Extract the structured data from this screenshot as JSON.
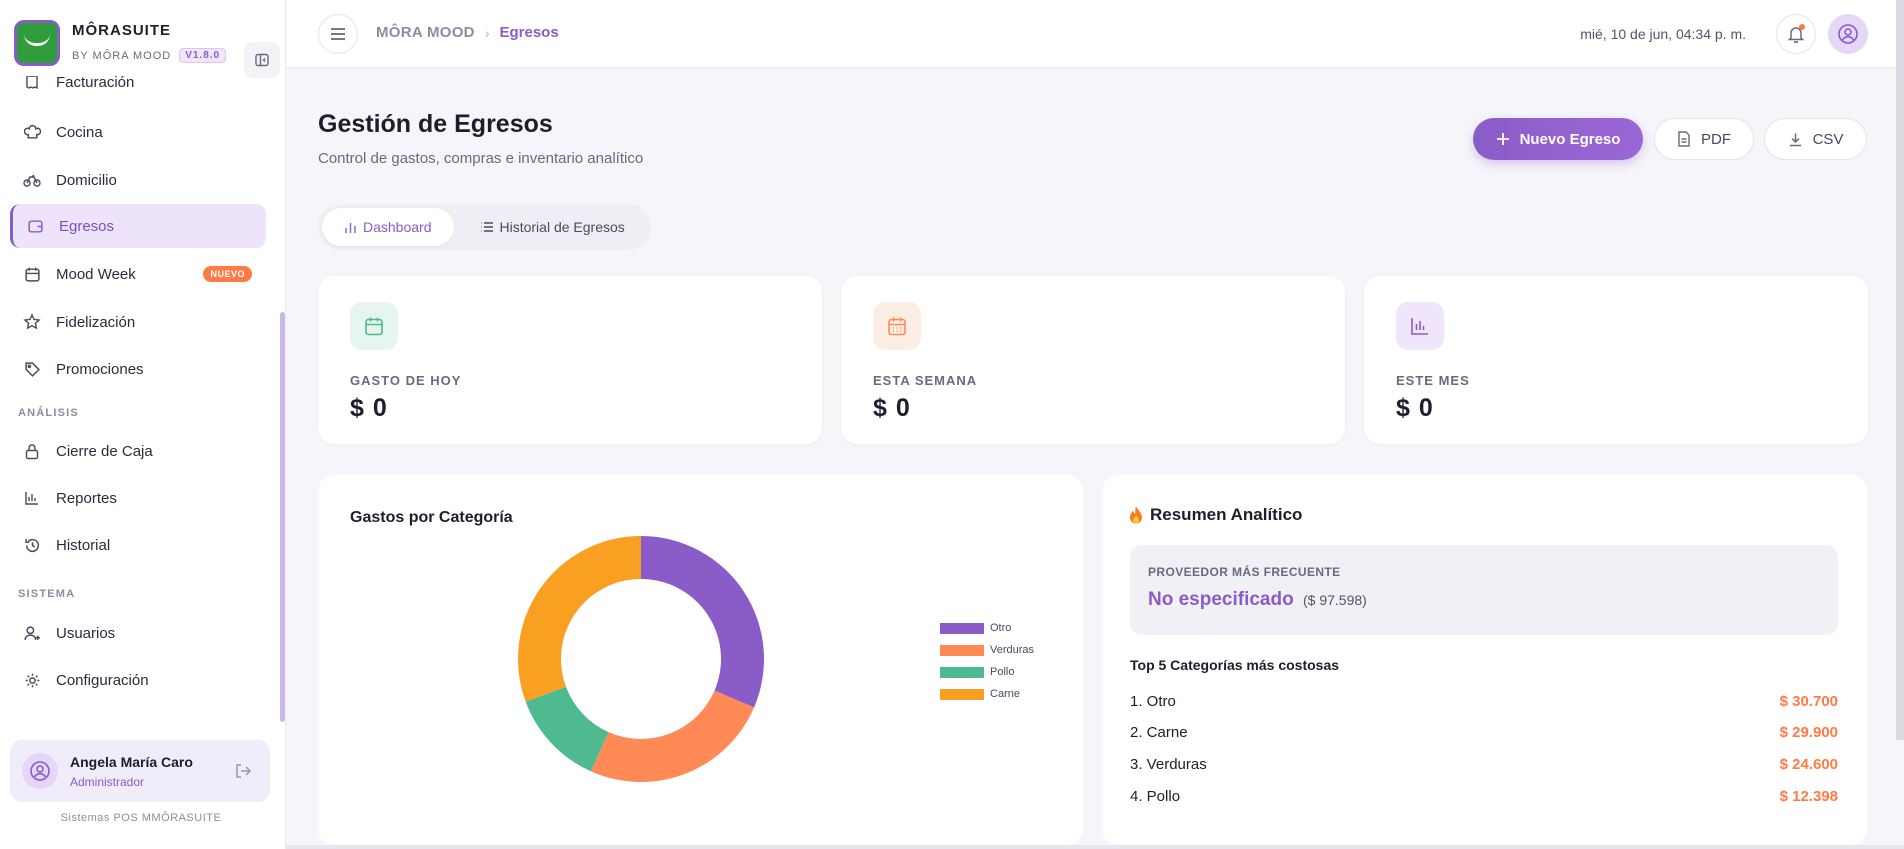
{
  "brand": {
    "name": "MÔRASUITE",
    "sub": "BY MÔRA MOOD",
    "version": "V1.8.0"
  },
  "sidebar": {
    "items": [
      {
        "label": "Facturación",
        "icon": "receipt-icon"
      },
      {
        "label": "Cocina",
        "icon": "chef-hat-icon"
      },
      {
        "label": "Domicilio",
        "icon": "bike-icon"
      },
      {
        "label": "Egresos",
        "icon": "wallet-icon",
        "active": true
      },
      {
        "label": "Mood Week",
        "icon": "calendar-icon",
        "badge": "NUEVO"
      },
      {
        "label": "Fidelización",
        "icon": "star-icon"
      },
      {
        "label": "Promociones",
        "icon": "tag-icon"
      },
      {
        "label": "Cierre de Caja",
        "icon": "lock-icon"
      },
      {
        "label": "Reportes",
        "icon": "bar-chart-icon"
      },
      {
        "label": "Historial",
        "icon": "history-icon"
      },
      {
        "label": "Usuarios",
        "icon": "users-icon"
      },
      {
        "label": "Configuración",
        "icon": "gear-icon"
      }
    ],
    "sections": {
      "analisis": "ANÁLISIS",
      "sistema": "SISTEMA"
    },
    "user": {
      "name": "Angela María Caro",
      "role": "Administrador"
    },
    "footer": "Sistemas POS MMÔRASUITE"
  },
  "topbar": {
    "breadcrumb": {
      "root": "MÔRA MOOD",
      "current": "Egresos"
    },
    "datetime": "mié, 10 de jun, 04:34 p. m."
  },
  "page": {
    "title": "Gestión de Egresos",
    "subtitle": "Control de gastos, compras e inventario analítico",
    "actions": {
      "new": "Nuevo Egreso",
      "pdf": "PDF",
      "csv": "CSV"
    },
    "tabs": [
      {
        "label": "Dashboard",
        "active": true
      },
      {
        "label": "Historial de Egresos"
      }
    ]
  },
  "stats": [
    {
      "label": "GASTO DE HOY",
      "value": "$ 0",
      "icon": "calendar-icon",
      "color": "#4fb98f",
      "bg": "#e6f5ee"
    },
    {
      "label": "ESTA SEMANA",
      "value": "$ 0",
      "icon": "calendar-grid-icon",
      "color": "#ff8a55",
      "bg": "#fdeee5"
    },
    {
      "label": "ESTE MES",
      "value": "$ 0",
      "icon": "bar-chart-icon",
      "color": "#8a5cc8",
      "bg": "#efe6fb"
    }
  ],
  "chart_data": {
    "type": "pie",
    "title": "Gastos por Categoría",
    "donut": true,
    "legend_position": "right",
    "categories": [
      "Otro",
      "Verduras",
      "Pollo",
      "Carne"
    ],
    "values": [
      30700,
      24600,
      12398,
      29900
    ],
    "colors": [
      "#8a5cc8",
      "#ff8a55",
      "#4fb98f",
      "#f9a023"
    ]
  },
  "summary": {
    "title": "Resumen Analítico",
    "provider_label": "PROVEEDOR MÁS FRECUENTE",
    "provider_value": "No especificado",
    "provider_amount": "($ 97.598)",
    "top5_title": "Top 5 Categorías más costosas",
    "ranking": [
      {
        "name": "1. Otro",
        "amount": "$ 30.700"
      },
      {
        "name": "2. Carne",
        "amount": "$ 29.900"
      },
      {
        "name": "3. Verduras",
        "amount": "$ 24.600"
      },
      {
        "name": "4. Pollo",
        "amount": "$ 12.398"
      }
    ]
  }
}
